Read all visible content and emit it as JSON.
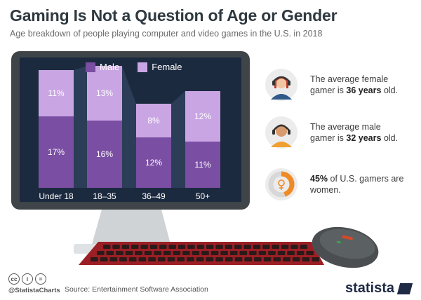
{
  "header": {
    "title": "Gaming Is Not a Question of Age or Gender",
    "subtitle": "Age breakdown of people playing computer and video games in the U.S. in 2018"
  },
  "colors": {
    "male": "#7a4fa3",
    "female": "#c9a6e3",
    "screen": "#1c2a3f",
    "monitor": "#3e4447",
    "keyboard": "#9b1f24",
    "accent_orange": "#f08a24"
  },
  "chart_data": {
    "type": "bar",
    "stacked": true,
    "categories": [
      "Under 18",
      "18–35",
      "36–49",
      "50+"
    ],
    "series": [
      {
        "name": "Male",
        "values": [
          17,
          16,
          12,
          11
        ]
      },
      {
        "name": "Female",
        "values": [
          11,
          13,
          8,
          12
        ]
      }
    ],
    "value_suffix": "%",
    "legend_position": "top-center",
    "grid": false
  },
  "facts": [
    {
      "pre": "The average female gamer is ",
      "bold": "36 years",
      "post": " old.",
      "icon": "female-gamer-icon"
    },
    {
      "pre": "The average male gamer is ",
      "bold": "32 years",
      "post": " old.",
      "icon": "male-gamer-icon"
    },
    {
      "pre": "",
      "bold": "45%",
      "post": " of U.S. gamers are women.",
      "icon": "female-share-donut-icon",
      "share": 45
    }
  ],
  "footer": {
    "handle": "@StatistaCharts",
    "source": "Source: Entertainment Software Association",
    "brand": "statista"
  }
}
